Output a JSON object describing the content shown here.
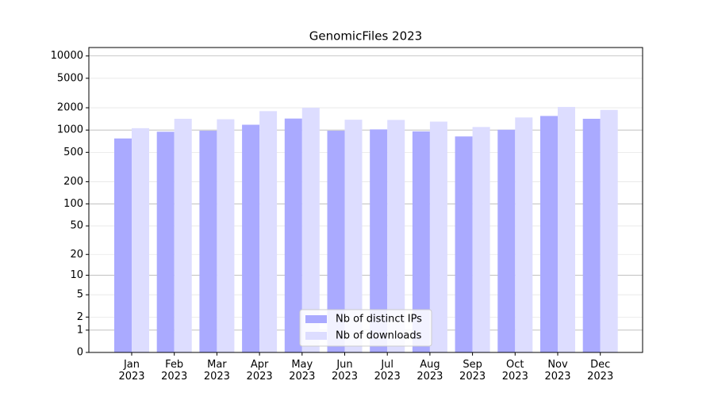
{
  "chart_data": {
    "type": "bar",
    "title": "GenomicFiles 2023",
    "categories": [
      "Jan 2023",
      "Feb 2023",
      "Mar 2023",
      "Apr 2023",
      "May 2023",
      "Jun 2023",
      "Jul 2023",
      "Aug 2023",
      "Sep 2023",
      "Oct 2023",
      "Nov 2023",
      "Dec 2023"
    ],
    "series": [
      {
        "name": "Nb of distinct IPs",
        "color": "#aaaaff",
        "values": [
          770,
          950,
          980,
          1180,
          1430,
          980,
          1020,
          960,
          820,
          1010,
          1550,
          1420
        ]
      },
      {
        "name": "Nb of downloads",
        "color": "#ddddff",
        "values": [
          1060,
          1420,
          1400,
          1800,
          2000,
          1380,
          1370,
          1300,
          1100,
          1480,
          2050,
          1870
        ]
      }
    ],
    "yscale": "symlog",
    "ylim": [
      0,
      13000
    ],
    "yticks": [
      0,
      1,
      2,
      5,
      10,
      20,
      50,
      100,
      200,
      500,
      1000,
      2000,
      5000,
      10000
    ],
    "grid": true,
    "legend": "lower center"
  }
}
